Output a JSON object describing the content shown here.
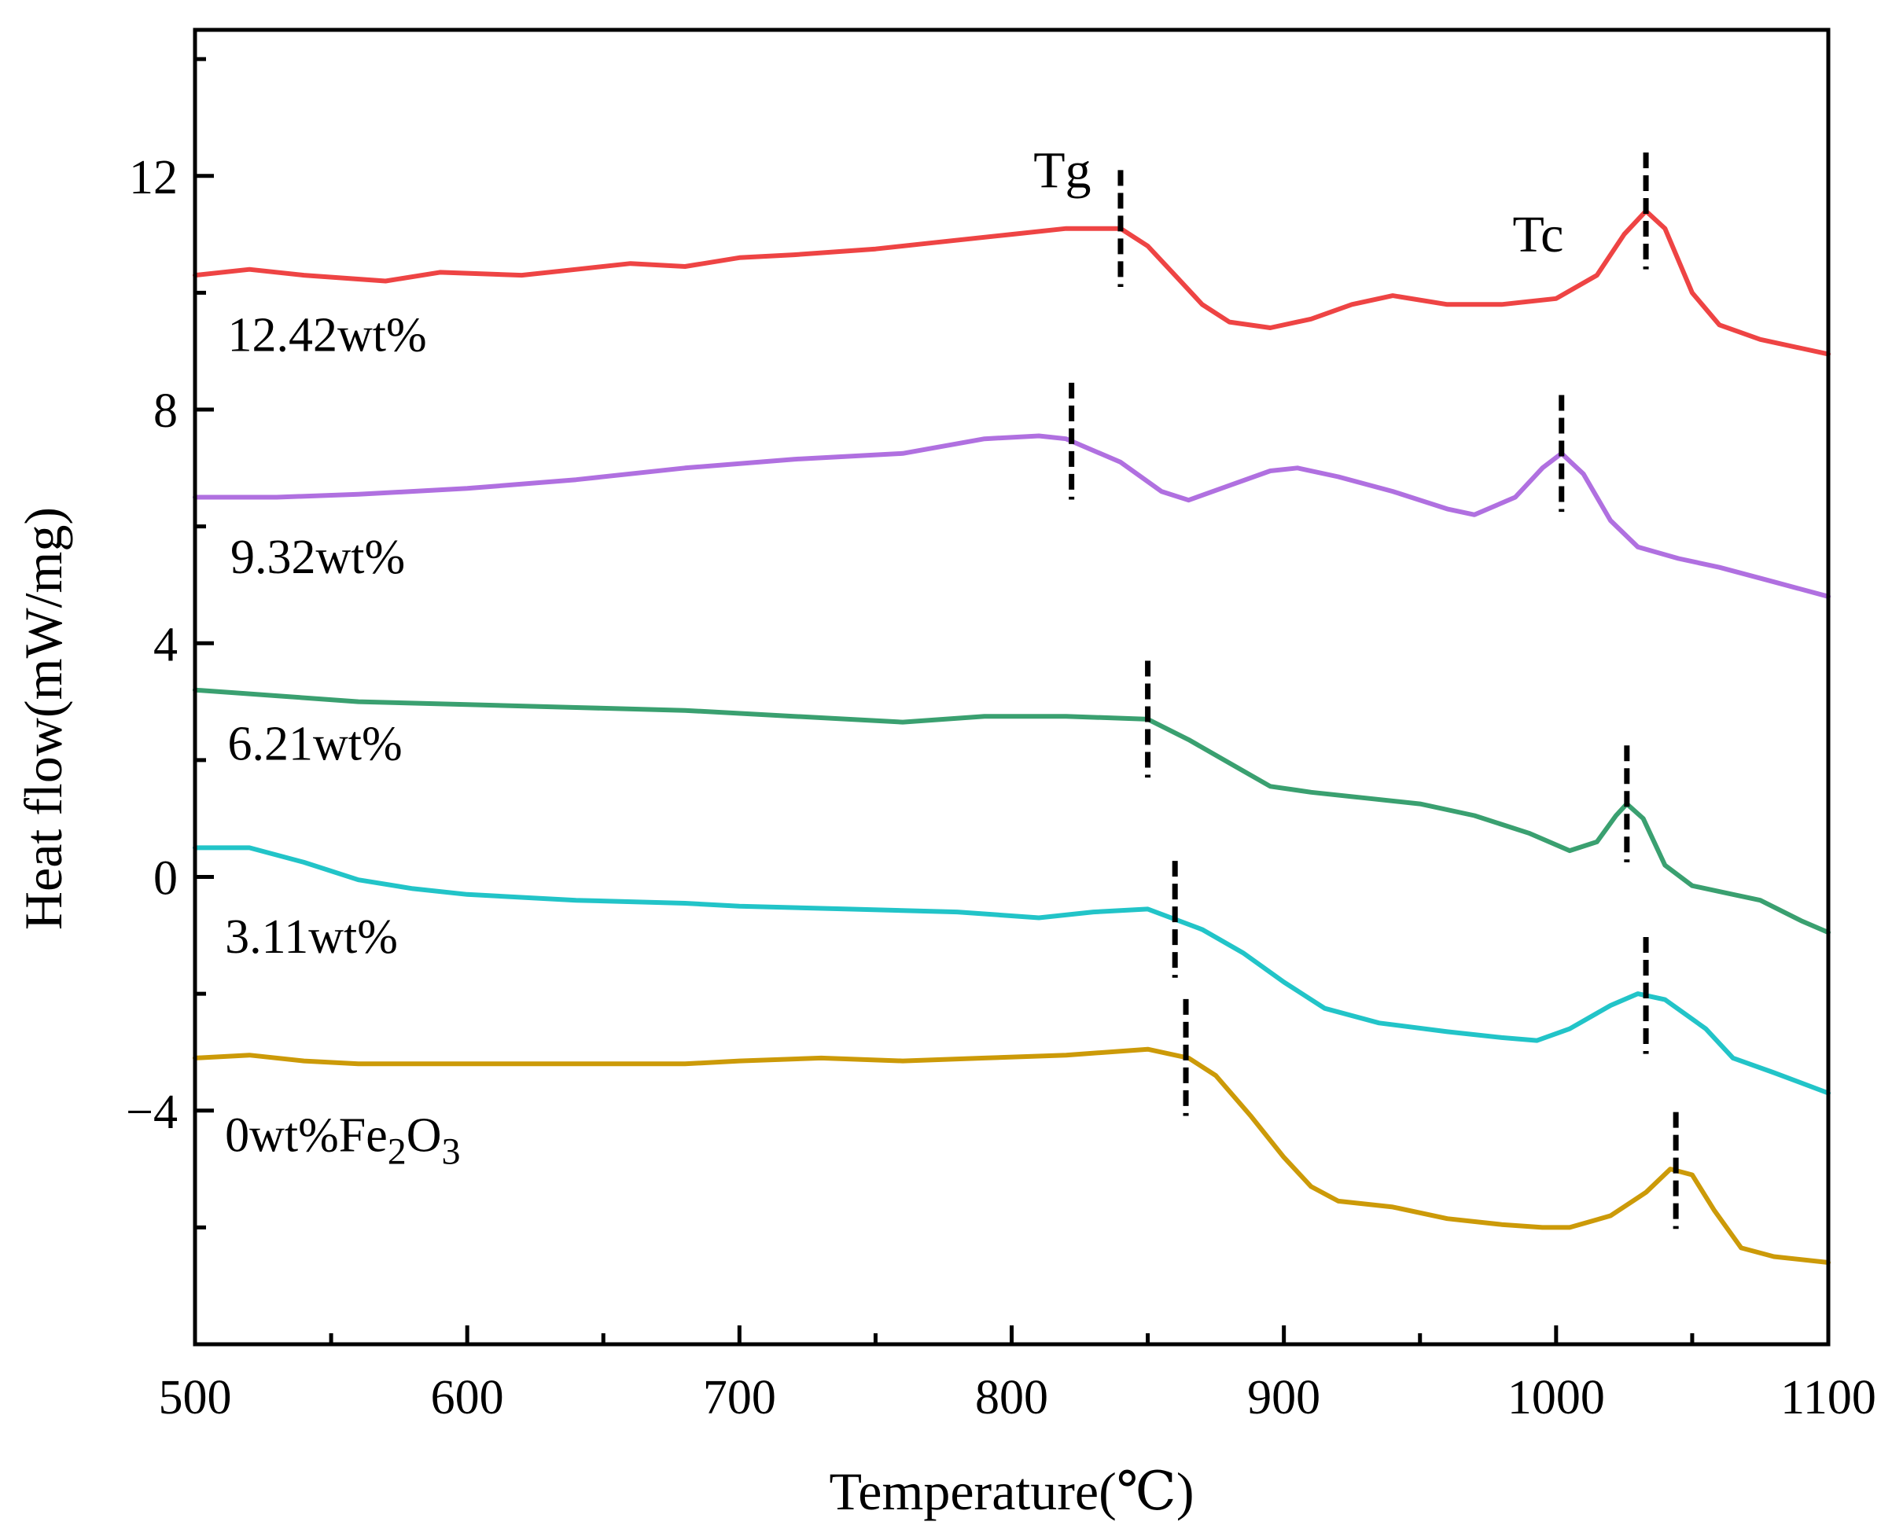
{
  "chart_data": {
    "type": "line",
    "title": "",
    "xlabel": "Temperature(℃)",
    "ylabel": "Heat flow(mW/mg)",
    "xlim": [
      500,
      1100
    ],
    "ylim": [
      -8,
      14.5
    ],
    "x_ticks": [
      {
        "value": 500,
        "label": "500"
      },
      {
        "value": 600,
        "label": "600"
      },
      {
        "value": 700,
        "label": "700"
      },
      {
        "value": 800,
        "label": "800"
      },
      {
        "value": 900,
        "label": "900"
      },
      {
        "value": 1000,
        "label": "1000"
      },
      {
        "value": 1100,
        "label": "1100"
      }
    ],
    "y_ticks": [
      {
        "value": -4,
        "label": "−4"
      },
      {
        "value": 0,
        "label": "0"
      },
      {
        "value": 4,
        "label": "4"
      },
      {
        "value": 8,
        "label": "8"
      },
      {
        "value": 12,
        "label": "12"
      }
    ],
    "annotations": [
      {
        "text": "Tg",
        "x": 808,
        "y": 12.1
      },
      {
        "text": "Tc",
        "x": 984,
        "y": 11.0
      }
    ],
    "series": [
      {
        "name": "12.42wt%",
        "label": "12.42wt%",
        "label_pos": {
          "x": 512,
          "y": 9.3
        },
        "color": "#ee4444",
        "tg": 840,
        "tc": 1033,
        "points": [
          [
            500,
            10.3
          ],
          [
            520,
            10.4
          ],
          [
            540,
            10.3
          ],
          [
            570,
            10.2
          ],
          [
            590,
            10.35
          ],
          [
            620,
            10.3
          ],
          [
            640,
            10.4
          ],
          [
            660,
            10.5
          ],
          [
            680,
            10.45
          ],
          [
            700,
            10.6
          ],
          [
            720,
            10.65
          ],
          [
            750,
            10.75
          ],
          [
            770,
            10.85
          ],
          [
            800,
            11.0
          ],
          [
            820,
            11.1
          ],
          [
            840,
            11.1
          ],
          [
            850,
            10.8
          ],
          [
            860,
            10.3
          ],
          [
            870,
            9.8
          ],
          [
            880,
            9.5
          ],
          [
            895,
            9.4
          ],
          [
            910,
            9.55
          ],
          [
            925,
            9.8
          ],
          [
            940,
            9.95
          ],
          [
            960,
            9.8
          ],
          [
            980,
            9.8
          ],
          [
            1000,
            9.9
          ],
          [
            1015,
            10.3
          ],
          [
            1025,
            11.0
          ],
          [
            1033,
            11.4
          ],
          [
            1040,
            11.1
          ],
          [
            1050,
            10.0
          ],
          [
            1060,
            9.45
          ],
          [
            1075,
            9.2
          ],
          [
            1090,
            9.05
          ],
          [
            1100,
            8.95
          ]
        ]
      },
      {
        "name": "9.32wt%",
        "label": "9.32wt%",
        "label_pos": {
          "x": 513,
          "y": 5.5
        },
        "color": "#b070e0",
        "tg": 822,
        "tc": 1002,
        "points": [
          [
            500,
            6.5
          ],
          [
            530,
            6.5
          ],
          [
            560,
            6.55
          ],
          [
            600,
            6.65
          ],
          [
            640,
            6.8
          ],
          [
            680,
            7.0
          ],
          [
            720,
            7.15
          ],
          [
            760,
            7.25
          ],
          [
            790,
            7.5
          ],
          [
            810,
            7.55
          ],
          [
            820,
            7.5
          ],
          [
            840,
            7.1
          ],
          [
            855,
            6.6
          ],
          [
            865,
            6.45
          ],
          [
            880,
            6.7
          ],
          [
            895,
            6.95
          ],
          [
            905,
            7.0
          ],
          [
            920,
            6.85
          ],
          [
            940,
            6.6
          ],
          [
            960,
            6.3
          ],
          [
            970,
            6.2
          ],
          [
            985,
            6.5
          ],
          [
            995,
            7.0
          ],
          [
            1002,
            7.25
          ],
          [
            1010,
            6.9
          ],
          [
            1020,
            6.1
          ],
          [
            1030,
            5.65
          ],
          [
            1045,
            5.45
          ],
          [
            1060,
            5.3
          ],
          [
            1080,
            5.05
          ],
          [
            1100,
            4.8
          ]
        ]
      },
      {
        "name": "6.21wt%",
        "label": "6.21wt%",
        "label_pos": {
          "x": 512,
          "y": 2.3
        },
        "color": "#3aa070",
        "tg": 850,
        "tc": 1026,
        "points": [
          [
            500,
            3.2
          ],
          [
            515,
            3.15
          ],
          [
            530,
            3.1
          ],
          [
            560,
            3.0
          ],
          [
            600,
            2.95
          ],
          [
            640,
            2.9
          ],
          [
            680,
            2.85
          ],
          [
            720,
            2.75
          ],
          [
            760,
            2.65
          ],
          [
            790,
            2.75
          ],
          [
            820,
            2.75
          ],
          [
            850,
            2.7
          ],
          [
            865,
            2.35
          ],
          [
            880,
            1.95
          ],
          [
            895,
            1.55
          ],
          [
            910,
            1.45
          ],
          [
            930,
            1.35
          ],
          [
            950,
            1.25
          ],
          [
            970,
            1.05
          ],
          [
            990,
            0.75
          ],
          [
            1005,
            0.45
          ],
          [
            1015,
            0.6
          ],
          [
            1022,
            1.05
          ],
          [
            1026,
            1.25
          ],
          [
            1032,
            1.0
          ],
          [
            1040,
            0.2
          ],
          [
            1050,
            -0.15
          ],
          [
            1065,
            -0.3
          ],
          [
            1075,
            -0.4
          ],
          [
            1090,
            -0.75
          ],
          [
            1100,
            -0.95
          ]
        ]
      },
      {
        "name": "3.11wt%",
        "label": "3.11wt%",
        "label_pos": {
          "x": 511,
          "y": -1.0
        },
        "color": "#22c4c8",
        "tg": 860,
        "tc": 1033,
        "points": [
          [
            500,
            0.5
          ],
          [
            520,
            0.5
          ],
          [
            540,
            0.25
          ],
          [
            560,
            -0.05
          ],
          [
            580,
            -0.2
          ],
          [
            600,
            -0.3
          ],
          [
            640,
            -0.4
          ],
          [
            680,
            -0.45
          ],
          [
            700,
            -0.5
          ],
          [
            740,
            -0.55
          ],
          [
            780,
            -0.6
          ],
          [
            810,
            -0.7
          ],
          [
            830,
            -0.6
          ],
          [
            850,
            -0.55
          ],
          [
            870,
            -0.9
          ],
          [
            885,
            -1.3
          ],
          [
            900,
            -1.8
          ],
          [
            915,
            -2.25
          ],
          [
            935,
            -2.5
          ],
          [
            960,
            -2.65
          ],
          [
            980,
            -2.75
          ],
          [
            993,
            -2.8
          ],
          [
            1005,
            -2.6
          ],
          [
            1020,
            -2.2
          ],
          [
            1030,
            -2.0
          ],
          [
            1040,
            -2.1
          ],
          [
            1055,
            -2.6
          ],
          [
            1065,
            -3.1
          ],
          [
            1080,
            -3.35
          ],
          [
            1100,
            -3.7
          ]
        ]
      },
      {
        "name": "0wt%Fe2O3",
        "label": "0wt%Fe",
        "sub1": "2",
        "mid": "O",
        "sub2": "3",
        "label_pos": {
          "x": 511,
          "y": -4.4
        },
        "color": "#cc9a08",
        "tg": 864,
        "tc": 1044,
        "points": [
          [
            500,
            -3.1
          ],
          [
            520,
            -3.05
          ],
          [
            540,
            -3.15
          ],
          [
            560,
            -3.2
          ],
          [
            600,
            -3.2
          ],
          [
            640,
            -3.2
          ],
          [
            680,
            -3.2
          ],
          [
            700,
            -3.15
          ],
          [
            730,
            -3.1
          ],
          [
            760,
            -3.15
          ],
          [
            790,
            -3.1
          ],
          [
            820,
            -3.05
          ],
          [
            850,
            -2.95
          ],
          [
            865,
            -3.1
          ],
          [
            875,
            -3.4
          ],
          [
            888,
            -4.1
          ],
          [
            900,
            -4.8
          ],
          [
            910,
            -5.3
          ],
          [
            920,
            -5.55
          ],
          [
            940,
            -5.65
          ],
          [
            960,
            -5.85
          ],
          [
            980,
            -5.95
          ],
          [
            995,
            -6.0
          ],
          [
            1005,
            -6.0
          ],
          [
            1020,
            -5.8
          ],
          [
            1033,
            -5.4
          ],
          [
            1042,
            -5.0
          ],
          [
            1050,
            -5.1
          ],
          [
            1058,
            -5.7
          ],
          [
            1068,
            -6.35
          ],
          [
            1080,
            -6.5
          ],
          [
            1100,
            -6.6
          ]
        ]
      }
    ]
  }
}
